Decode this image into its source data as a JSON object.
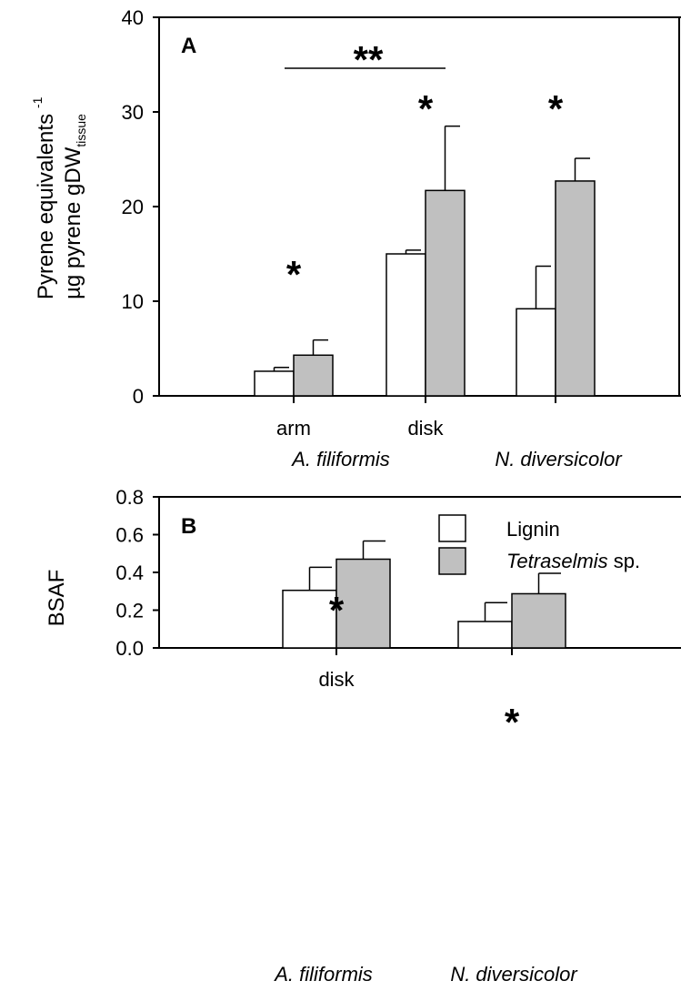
{
  "chart_data": [
    {
      "type": "bar",
      "panel": "A",
      "ylabel_line1": "Pyrene equivalents",
      "ylabel_line2_main": "µg pyrene gDW",
      "ylabel_line2_sub": "tissue",
      "ylabel_line2_sup": "-1",
      "ylim": [
        0,
        40
      ],
      "yticks": [
        "0",
        "10",
        "20",
        "30",
        "40"
      ],
      "categories": [
        "arm",
        "disk",
        ""
      ],
      "group_labels": [
        "A. filiformis",
        "N. diversicolor"
      ],
      "series": [
        {
          "name": "Lignin",
          "color": "#ffffff",
          "values": [
            2.6,
            15.0,
            9.2
          ],
          "errors": [
            0.4,
            0.4,
            4.5
          ]
        },
        {
          "name": "Tetraselmis sp.",
          "color": "#c0c0c0",
          "values": [
            4.3,
            21.7,
            22.7
          ],
          "errors": [
            1.6,
            6.8,
            2.4
          ]
        }
      ],
      "significance": [
        "*",
        "*",
        "*"
      ],
      "bracket_label": "**"
    },
    {
      "type": "bar",
      "panel": "B",
      "ylabel": "BSAF",
      "ylim": [
        0,
        0.8
      ],
      "yticks": [
        "0.0",
        "0.2",
        "0.4",
        "0.6",
        "0.8"
      ],
      "categories": [
        "disk",
        ""
      ],
      "group_labels": [
        "A. filiformis",
        "N. diversicolor"
      ],
      "series": [
        {
          "name": "Lignin",
          "color": "#ffffff",
          "values": [
            0.305,
            0.14
          ],
          "errors": [
            0.122,
            0.1
          ]
        },
        {
          "name": "Tetraselmis sp.",
          "color": "#c0c0c0",
          "values": [
            0.47,
            0.287
          ],
          "errors": [
            0.096,
            0.108
          ]
        }
      ],
      "significance": [
        "*",
        "*"
      ],
      "legend": {
        "position": "top-right",
        "entries": [
          {
            "text": "Lignin",
            "italic": "",
            "suffix": ""
          },
          {
            "text": "",
            "italic": "Tetraselmis",
            "suffix": " sp."
          }
        ]
      }
    }
  ]
}
